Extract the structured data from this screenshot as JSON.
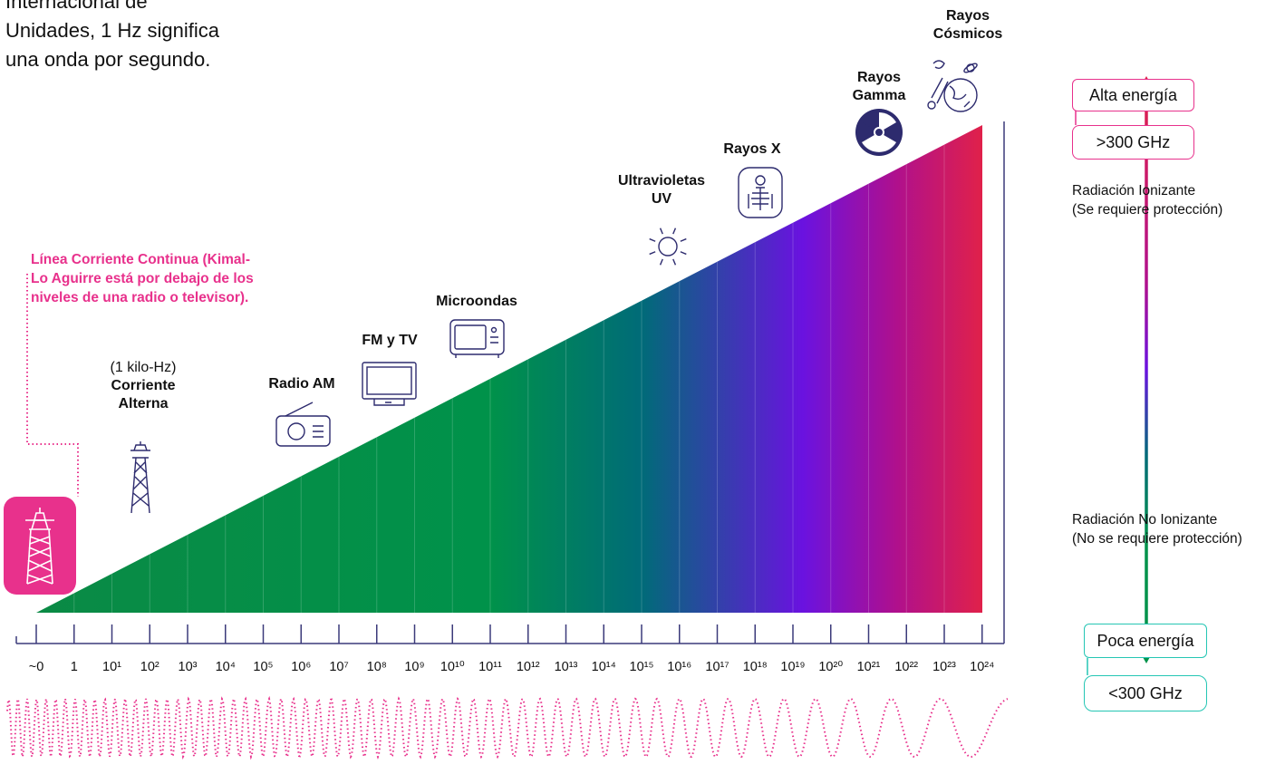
{
  "intro_text": [
    "Internacional de",
    "Unidades, 1 Hz significa",
    "una onda por segundo."
  ],
  "bands": {
    "dc_note": "Línea Corriente Continua (Kimal-Lo Aguirre está por debajo de los niveles de una radio o televisor).",
    "ac_note": "(1 kilo-Hz)",
    "ac_label": "Corriente Alterna",
    "am_label": "Radio AM",
    "fm_label": "FM y TV",
    "micro_label": "Microondas",
    "uv_label": "Ultravioletas UV",
    "xray_label": "Rayos X",
    "gamma_label": "Rayos Gamma",
    "cosmic_label": "Rayos Cósmicos"
  },
  "energy": {
    "high_label": "Alta energía",
    "high_freq": ">300 GHz",
    "ionizing": "Radiación Ionizante",
    "ionizing_note": "(Se requiere protección)",
    "non_ionizing": "Radiación No Ionizante",
    "non_ionizing_note": "(No se requiere protección)",
    "low_label": "Poca energía",
    "low_freq": "<300 GHz"
  },
  "axis_ticks": [
    "~0",
    "1",
    "10¹",
    "10²",
    "10³",
    "10⁴",
    "10⁵",
    "10⁶",
    "10⁷",
    "10⁸",
    "10⁹",
    "10¹⁰",
    "10¹¹",
    "10¹²",
    "10¹³",
    "10¹⁴",
    "10¹⁵",
    "10¹⁶",
    "10¹⁷",
    "10¹⁸",
    "10¹⁹",
    "10²⁰",
    "10²¹",
    "10²²",
    "10²³",
    "10²⁴"
  ],
  "colors": {
    "green": "#00924a",
    "teal": "#006b78",
    "violet": "#6a12e0",
    "magenta": "#b0108c",
    "crimson": "#e0214a",
    "pink": "#e8318c",
    "aqua": "#25c6b4",
    "icon_navy": "#2d2b6e"
  },
  "icons": [
    "power-tower-icon",
    "transmission-tower-icon",
    "radio-icon",
    "tv-icon",
    "microwave-icon",
    "sun-icon",
    "xray-icon",
    "radiation-icon",
    "cosmic-icon"
  ]
}
